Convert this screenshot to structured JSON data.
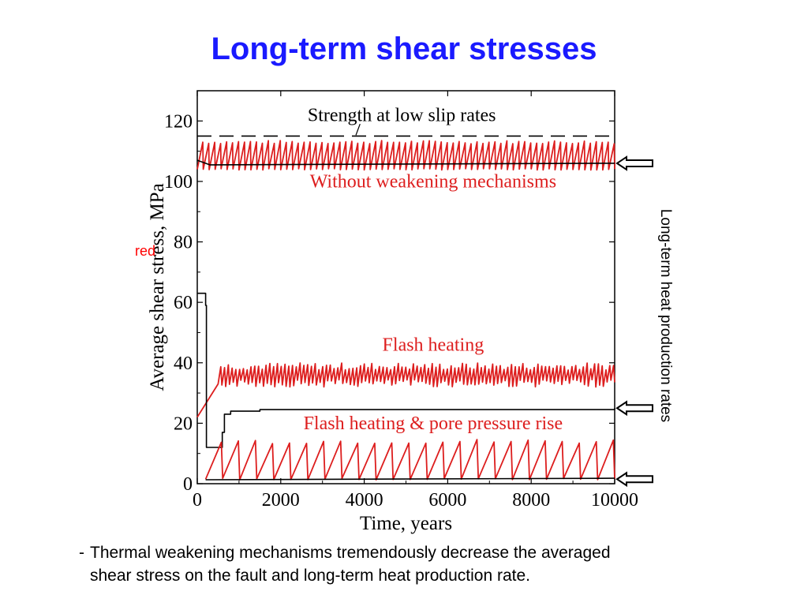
{
  "slide": {
    "title": "Long-term shear stresses",
    "side_label": "Long-term heat production rates",
    "red_note": "red",
    "caption_bullet": "-",
    "caption_line1": "Thermal weakening mechanisms tremendously decrease the averaged",
    "caption_line2": "shear stress on the fault and long-term heat production rate."
  },
  "chart_data": {
    "type": "line",
    "title": "",
    "xlabel": "Time, years",
    "ylabel": "Average shear stress, MPa",
    "xlim": [
      0,
      10000
    ],
    "ylim": [
      0,
      130
    ],
    "xticks": [
      0,
      2000,
      4000,
      6000,
      8000,
      10000
    ],
    "yticks": [
      0,
      20,
      40,
      60,
      80,
      100,
      120
    ],
    "grid": false,
    "annotations": [
      {
        "text": "Strength at low slip rates",
        "x": 4900,
        "y": 120
      },
      {
        "text": "Without weakening mechanisms",
        "x": 5650,
        "y": 98
      },
      {
        "text": "Flash heating",
        "x": 5650,
        "y": 44
      },
      {
        "text": "Flash heating & pore pressure rise",
        "x": 5650,
        "y": 18
      }
    ],
    "reference_lines": [
      {
        "name": "Strength at low slip rates",
        "y": 115,
        "style": "dashed",
        "color": "#000000"
      }
    ],
    "arrow_levels": [
      106,
      25,
      1.5
    ],
    "series": [
      {
        "group": "Without weakening mechanisms",
        "color": "#dd1e1e",
        "kind": "sawtooth",
        "x_range": [
          0,
          10000
        ],
        "base": 104,
        "peak": 113,
        "events": 70
      },
      {
        "group": "Without weakening mechanisms",
        "color": "#000000",
        "kind": "average",
        "x": [
          0,
          300,
          10000
        ],
        "y": [
          107,
          105.5,
          106
        ]
      },
      {
        "group": "Flash heating",
        "color": "#dd1e1e",
        "kind": "noisy",
        "x_range": [
          0,
          10000
        ],
        "start": 22,
        "level": 36,
        "amplitude": 4,
        "events": 105
      },
      {
        "group": "Flash heating",
        "color": "#000000",
        "kind": "step",
        "x": [
          0,
          200,
          220,
          300,
          600,
          650,
          800,
          1500,
          10000
        ],
        "y": [
          63,
          59,
          12,
          12,
          17,
          23,
          24,
          24.5,
          25
        ]
      },
      {
        "group": "Flash heating & pore pressure rise",
        "color": "#dd1e1e",
        "kind": "sawtooth",
        "x_range": [
          200,
          10000
        ],
        "base": 1.5,
        "peak": 14,
        "events": 24
      },
      {
        "group": "Flash heating & pore pressure rise",
        "color": "#000000",
        "kind": "average",
        "x": [
          200,
          10000
        ],
        "y": [
          1.3,
          1.8
        ]
      }
    ]
  }
}
